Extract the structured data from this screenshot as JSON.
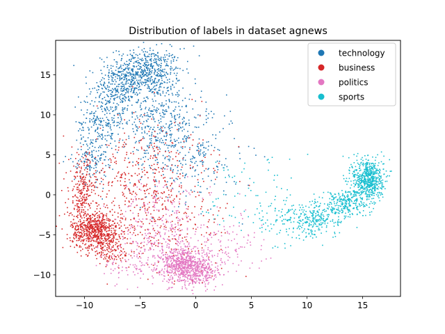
{
  "chart_data": {
    "type": "scatter",
    "title": "Distribution of labels in dataset agnews",
    "xlabel": "",
    "ylabel": "",
    "xlim": [
      -12.6,
      18.4
    ],
    "ylim": [
      -12.7,
      19.3
    ],
    "xticks": [
      -10,
      -5,
      0,
      5,
      10,
      15
    ],
    "yticks": [
      -10,
      -5,
      0,
      5,
      10,
      15
    ],
    "xtick_labels": [
      "−10",
      "−5",
      "0",
      "5",
      "10",
      "15"
    ],
    "ytick_labels": [
      "−10",
      "−5",
      "0",
      "5",
      "10",
      "15"
    ],
    "grid": false,
    "legend_position": "top-right",
    "series": [
      {
        "name": "technology",
        "color": "#1f77b4",
        "clusters": [
          {
            "cx": -4.5,
            "cy": 15.5,
            "sx": 1.6,
            "sy": 1.4,
            "n": 550
          },
          {
            "cx": -7.0,
            "cy": 13.0,
            "sx": 1.2,
            "sy": 1.5,
            "n": 250
          },
          {
            "cx": -3.5,
            "cy": 10.0,
            "sx": 2.0,
            "sy": 2.5,
            "n": 350
          },
          {
            "cx": -8.5,
            "cy": 9.0,
            "sx": 1.0,
            "sy": 2.0,
            "n": 200
          },
          {
            "cx": -1.0,
            "cy": 5.0,
            "sx": 2.5,
            "sy": 3.0,
            "n": 300
          },
          {
            "cx": -9.5,
            "cy": 4.5,
            "sx": 0.8,
            "sy": 1.5,
            "n": 120
          }
        ]
      },
      {
        "name": "business",
        "color": "#d62728",
        "clusters": [
          {
            "cx": -9.0,
            "cy": -4.5,
            "sx": 1.1,
            "sy": 1.2,
            "n": 650
          },
          {
            "cx": -10.2,
            "cy": 0.0,
            "sx": 0.6,
            "sy": 2.5,
            "n": 250
          },
          {
            "cx": -7.5,
            "cy": -7.0,
            "sx": 1.0,
            "sy": 1.0,
            "n": 120
          },
          {
            "cx": -6.0,
            "cy": 0.5,
            "sx": 2.5,
            "sy": 3.0,
            "n": 300
          },
          {
            "cx": -3.0,
            "cy": 3.0,
            "sx": 3.0,
            "sy": 3.5,
            "n": 180
          },
          {
            "cx": -2.0,
            "cy": -5.0,
            "sx": 2.5,
            "sy": 2.5,
            "n": 150
          }
        ]
      },
      {
        "name": "politics",
        "color": "#e377c2",
        "clusters": [
          {
            "cx": -1.0,
            "cy": -8.8,
            "sx": 1.1,
            "sy": 1.1,
            "n": 650
          },
          {
            "cx": 0.5,
            "cy": -10.0,
            "sx": 1.0,
            "sy": 0.8,
            "n": 150
          },
          {
            "cx": -3.5,
            "cy": -6.0,
            "sx": 2.0,
            "sy": 2.0,
            "n": 200
          },
          {
            "cx": -3.0,
            "cy": -2.0,
            "sx": 2.0,
            "sy": 2.0,
            "n": 120
          },
          {
            "cx": 2.5,
            "cy": -6.5,
            "sx": 2.0,
            "sy": 2.0,
            "n": 120
          },
          {
            "cx": -6.0,
            "cy": -9.0,
            "sx": 1.5,
            "sy": 1.0,
            "n": 60
          }
        ]
      },
      {
        "name": "sports",
        "color": "#17becf",
        "clusters": [
          {
            "cx": 15.5,
            "cy": 2.0,
            "sx": 0.7,
            "sy": 1.3,
            "n": 600
          },
          {
            "cx": 13.5,
            "cy": -1.0,
            "sx": 1.0,
            "sy": 0.9,
            "n": 250
          },
          {
            "cx": 11.0,
            "cy": -3.0,
            "sx": 1.3,
            "sy": 1.0,
            "n": 200
          },
          {
            "cx": 8.5,
            "cy": -3.5,
            "sx": 1.5,
            "sy": 1.5,
            "n": 120
          },
          {
            "cx": 5.5,
            "cy": 0.0,
            "sx": 2.5,
            "sy": 3.0,
            "n": 80
          }
        ]
      }
    ]
  }
}
